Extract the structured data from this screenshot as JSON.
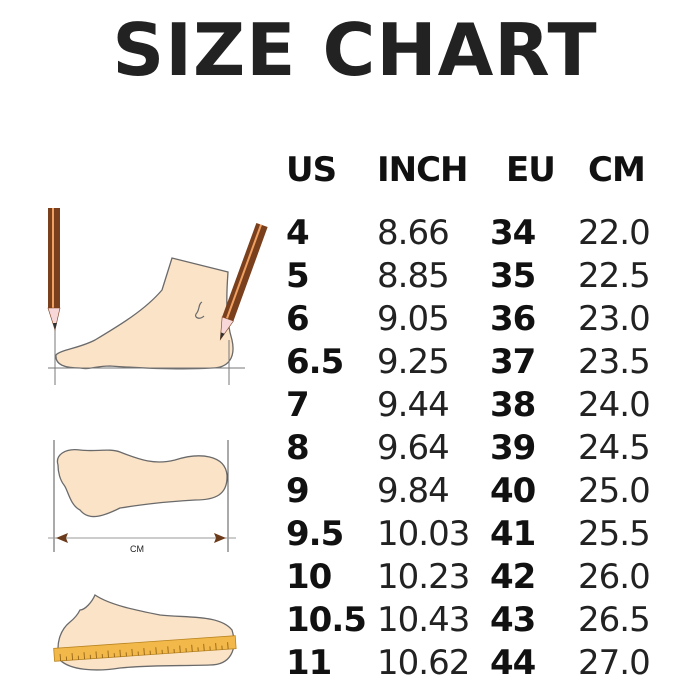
{
  "title": "SIZE CHART",
  "headers": {
    "us": "US",
    "inch": "INCH",
    "eu": "EU",
    "cm": "CM"
  },
  "rows": [
    {
      "us": "4",
      "inch": "8.66",
      "eu": "34",
      "cm": "22.0"
    },
    {
      "us": "5",
      "inch": "8.85",
      "eu": "35",
      "cm": "22.5"
    },
    {
      "us": "6",
      "inch": "9.05",
      "eu": "36",
      "cm": "23.0"
    },
    {
      "us": "6.5",
      "inch": "9.25",
      "eu": "37",
      "cm": "23.5"
    },
    {
      "us": "7",
      "inch": "9.44",
      "eu": "38",
      "cm": "24.0"
    },
    {
      "us": "8",
      "inch": "9.64",
      "eu": "39",
      "cm": "24.5"
    },
    {
      "us": "9",
      "inch": "9.84",
      "eu": "40",
      "cm": "25.0"
    },
    {
      "us": "9.5",
      "inch": "10.03",
      "eu": "41",
      "cm": "25.5"
    },
    {
      "us": "10",
      "inch": "10.23",
      "eu": "42",
      "cm": "26.0"
    },
    {
      "us": "10.5",
      "inch": "10.43",
      "eu": "43",
      "cm": "26.5"
    },
    {
      "us": "11",
      "inch": "10.62",
      "eu": "44",
      "cm": "27.0"
    }
  ],
  "illustration": {
    "measure_label": "CM"
  },
  "colors": {
    "skin": "#fbe3c8",
    "outline": "#6a6a6a",
    "pencil": "#7a3f1c",
    "ruler": "#f2b84a"
  }
}
